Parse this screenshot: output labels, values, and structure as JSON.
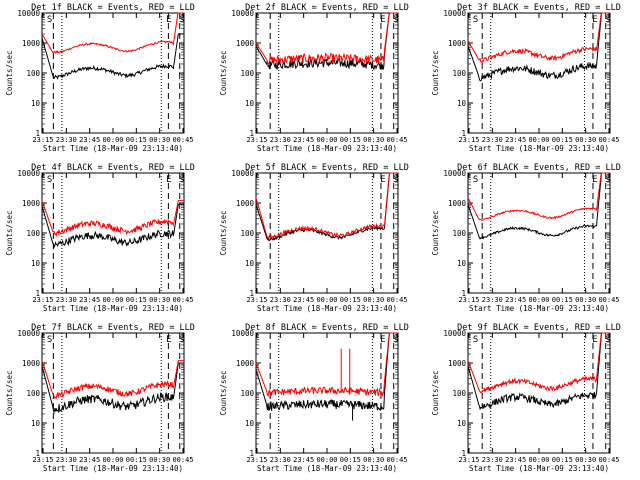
{
  "chart_data": [
    {
      "type": "line",
      "title": "Det 1f BLACK = Events, RED = LLD",
      "corner_labels": [
        "S",
        "E",
        "S"
      ],
      "series": [
        {
          "color": "#000000",
          "shape": "u",
          "start": [
            0.0,
            1500
          ],
          "min": 70,
          "level": 70,
          "end": [
            0.92,
            2000
          ],
          "noise": 0.06
        },
        {
          "color": "#ff0000",
          "shape": "u",
          "start": [
            0.0,
            2000
          ],
          "min": 500,
          "level": 450,
          "end": [
            0.92,
            12000
          ],
          "noise": 0.03
        }
      ],
      "dashed_x": [
        0.08,
        0.89,
        0.97
      ],
      "dotted_x": [
        0.14,
        0.84
      ]
    },
    {
      "type": "line",
      "title": "Det 2f BLACK = Events, RED = LLD",
      "corner_labels": [
        "E",
        "S"
      ],
      "series": [
        {
          "color": "#000000",
          "shape": "flat",
          "start": [
            0.0,
            800
          ],
          "min": 180,
          "level": 180,
          "end": [
            0.9,
            12000
          ],
          "noise": 0.15
        },
        {
          "color": "#ff0000",
          "shape": "flat",
          "start": [
            0.0,
            1000
          ],
          "min": 280,
          "level": 260,
          "end": [
            0.9,
            12000
          ],
          "noise": 0.15
        }
      ],
      "dashed_x": [
        0.1,
        0.88,
        0.97
      ],
      "dotted_x": [
        0.16,
        0.82
      ]
    },
    {
      "type": "line",
      "title": "Det 3f BLACK = Events, RED = LLD",
      "corner_labels": [
        "S",
        "E",
        "S"
      ],
      "series": [
        {
          "color": "#000000",
          "shape": "u",
          "start": [
            0.0,
            800
          ],
          "min": 60,
          "level": 70,
          "end": [
            0.9,
            10000
          ],
          "noise": 0.12
        },
        {
          "color": "#ff0000",
          "shape": "u",
          "start": [
            0.0,
            1200
          ],
          "min": 250,
          "level": 260,
          "end": [
            0.9,
            12000
          ],
          "noise": 0.08
        }
      ],
      "dashed_x": [
        0.1,
        0.88,
        0.97
      ],
      "dotted_x": [
        0.16,
        0.82
      ]
    },
    {
      "type": "line",
      "title": "Det 4f BLACK = Events, RED = LLD",
      "corner_labels": [
        "S",
        "E",
        "S"
      ],
      "series": [
        {
          "color": "#000000",
          "shape": "u",
          "start": [
            0.0,
            800
          ],
          "min": 35,
          "level": 40,
          "end": [
            0.92,
            900
          ],
          "noise": 0.12
        },
        {
          "color": "#ff0000",
          "shape": "u",
          "start": [
            0.0,
            1200
          ],
          "min": 90,
          "level": 100,
          "end": [
            0.92,
            1200
          ],
          "noise": 0.1
        }
      ],
      "dashed_x": [
        0.08,
        0.89,
        0.97
      ],
      "dotted_x": [
        0.14,
        0.84
      ]
    },
    {
      "type": "line",
      "title": "Det 5f BLACK = Events, RED = LLD",
      "corner_labels": [
        "E",
        "S"
      ],
      "series": [
        {
          "color": "#000000",
          "shape": "u",
          "start": [
            0.0,
            900
          ],
          "min": 60,
          "level": 60,
          "end": [
            0.9,
            10000
          ],
          "noise": 0.05
        },
        {
          "color": "#ff0000",
          "shape": "u",
          "start": [
            0.0,
            1500
          ],
          "min": 70,
          "level": 70,
          "end": [
            0.9,
            12000
          ],
          "noise": 0.06
        }
      ],
      "dashed_x": [
        0.1,
        0.88,
        0.97
      ],
      "dotted_x": [
        0.16,
        0.82
      ]
    },
    {
      "type": "line",
      "title": "Det 6f BLACK = Events, RED = LLD",
      "corner_labels": [
        "S",
        "E",
        "S"
      ],
      "series": [
        {
          "color": "#000000",
          "shape": "u",
          "start": [
            0.0,
            900
          ],
          "min": 60,
          "level": 70,
          "end": [
            0.9,
            10000
          ],
          "noise": 0.04
        },
        {
          "color": "#ff0000",
          "shape": "u",
          "start": [
            0.0,
            1500
          ],
          "min": 280,
          "level": 270,
          "end": [
            0.9,
            12000
          ],
          "noise": 0.03
        }
      ],
      "dashed_x": [
        0.1,
        0.88,
        0.97
      ],
      "dotted_x": [
        0.16,
        0.82
      ]
    },
    {
      "type": "line",
      "title": "Det 7f BLACK = Events, RED = LLD",
      "corner_labels": [
        "S",
        "E",
        "S"
      ],
      "series": [
        {
          "color": "#000000",
          "shape": "u",
          "start": [
            0.0,
            800
          ],
          "min": 25,
          "level": 30,
          "end": [
            0.92,
            1000
          ],
          "noise": 0.15
        },
        {
          "color": "#ff0000",
          "shape": "u",
          "start": [
            0.0,
            1200
          ],
          "min": 70,
          "level": 80,
          "end": [
            0.92,
            1200
          ],
          "noise": 0.1
        }
      ],
      "dashed_x": [
        0.08,
        0.89,
        0.97
      ],
      "dotted_x": [
        0.14,
        0.84
      ]
    },
    {
      "type": "line",
      "title": "Det 8f BLACK = Events, RED = LLD",
      "corner_labels": [
        "E",
        "S"
      ],
      "series": [
        {
          "color": "#000000",
          "shape": "flat",
          "start": [
            0.0,
            600
          ],
          "min": 35,
          "level": 35,
          "end": [
            0.9,
            12000
          ],
          "noise": 0.15
        },
        {
          "color": "#ff0000",
          "shape": "flat",
          "start": [
            0.0,
            1000
          ],
          "min": 90,
          "level": 100,
          "end": [
            0.9,
            12000
          ],
          "noise": 0.12
        }
      ],
      "dashed_x": [
        0.1,
        0.88,
        0.97
      ],
      "dotted_x": [
        0.16,
        0.82
      ]
    },
    {
      "type": "line",
      "title": "Det 9f BLACK = Events, RED = LLD",
      "corner_labels": [
        "S",
        "E",
        "S"
      ],
      "series": [
        {
          "color": "#000000",
          "shape": "u",
          "start": [
            0.0,
            800
          ],
          "min": 30,
          "level": 35,
          "end": [
            0.9,
            10000
          ],
          "noise": 0.12
        },
        {
          "color": "#ff0000",
          "shape": "u",
          "start": [
            0.0,
            1200
          ],
          "min": 110,
          "level": 120,
          "end": [
            0.9,
            12000
          ],
          "noise": 0.08
        }
      ],
      "dashed_x": [
        0.1,
        0.88,
        0.97
      ],
      "dotted_x": [
        0.16,
        0.82
      ]
    }
  ],
  "axes": {
    "xticks": [
      "23:15",
      "23:30",
      "23:45",
      "00:00",
      "00:15",
      "00:30",
      "00:45"
    ],
    "yticks": [
      "1",
      "10",
      "100",
      "1000",
      "10000"
    ],
    "ylim": [
      1,
      10000
    ],
    "ylabel": "Counts/sec",
    "xlabel": "Start Time (18-Mar-09 23:13:40)"
  }
}
